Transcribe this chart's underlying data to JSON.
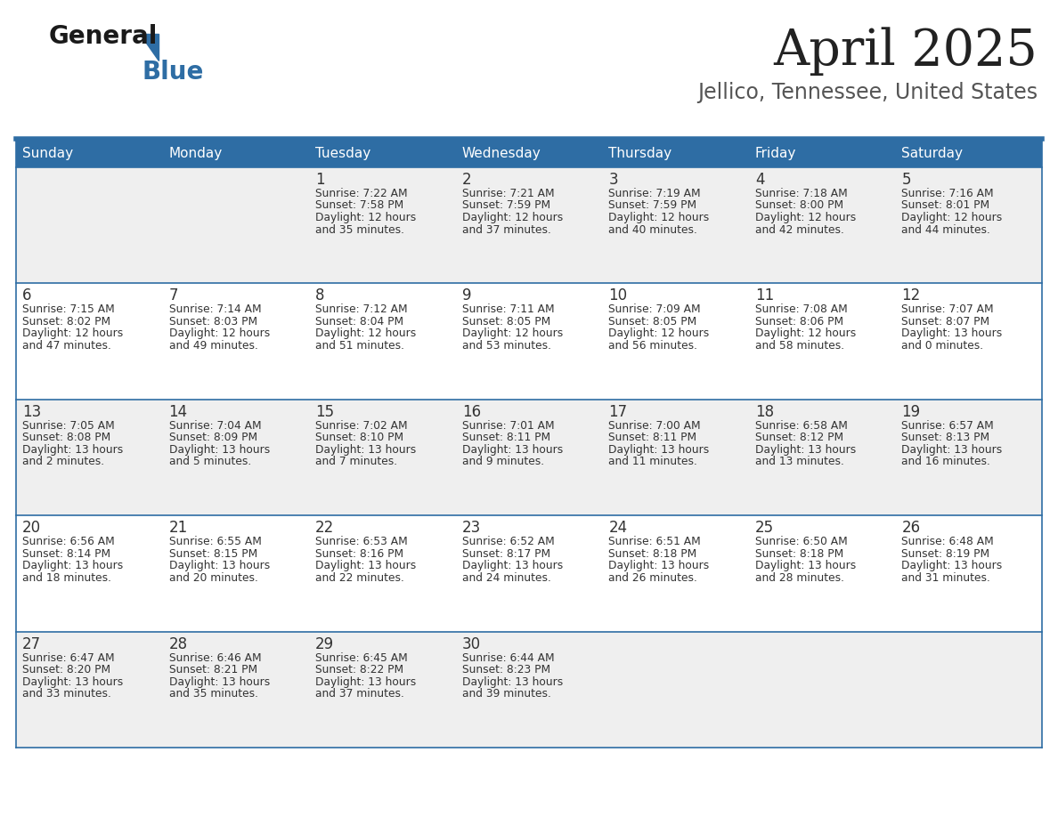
{
  "title": "April 2025",
  "subtitle": "Jellico, Tennessee, United States",
  "header_bg_color": "#2E6DA4",
  "header_text_color": "#FFFFFF",
  "cell_bg_light": "#EFEFEF",
  "cell_bg_white": "#FFFFFF",
  "border_color": "#2E6DA4",
  "day_headers": [
    "Sunday",
    "Monday",
    "Tuesday",
    "Wednesday",
    "Thursday",
    "Friday",
    "Saturday"
  ],
  "title_color": "#222222",
  "subtitle_color": "#555555",
  "day_number_color": "#333333",
  "cell_text_color": "#333333",
  "logo_general_color": "#1a1a1a",
  "logo_blue_color": "#2E6DA4",
  "logo_triangle_color": "#2E6DA4",
  "calendar": [
    [
      {
        "day": "",
        "sunrise": "",
        "sunset": "",
        "daylight": ""
      },
      {
        "day": "",
        "sunrise": "",
        "sunset": "",
        "daylight": ""
      },
      {
        "day": "1",
        "sunrise": "Sunrise: 7:22 AM",
        "sunset": "Sunset: 7:58 PM",
        "daylight": "Daylight: 12 hours\nand 35 minutes."
      },
      {
        "day": "2",
        "sunrise": "Sunrise: 7:21 AM",
        "sunset": "Sunset: 7:59 PM",
        "daylight": "Daylight: 12 hours\nand 37 minutes."
      },
      {
        "day": "3",
        "sunrise": "Sunrise: 7:19 AM",
        "sunset": "Sunset: 7:59 PM",
        "daylight": "Daylight: 12 hours\nand 40 minutes."
      },
      {
        "day": "4",
        "sunrise": "Sunrise: 7:18 AM",
        "sunset": "Sunset: 8:00 PM",
        "daylight": "Daylight: 12 hours\nand 42 minutes."
      },
      {
        "day": "5",
        "sunrise": "Sunrise: 7:16 AM",
        "sunset": "Sunset: 8:01 PM",
        "daylight": "Daylight: 12 hours\nand 44 minutes."
      }
    ],
    [
      {
        "day": "6",
        "sunrise": "Sunrise: 7:15 AM",
        "sunset": "Sunset: 8:02 PM",
        "daylight": "Daylight: 12 hours\nand 47 minutes."
      },
      {
        "day": "7",
        "sunrise": "Sunrise: 7:14 AM",
        "sunset": "Sunset: 8:03 PM",
        "daylight": "Daylight: 12 hours\nand 49 minutes."
      },
      {
        "day": "8",
        "sunrise": "Sunrise: 7:12 AM",
        "sunset": "Sunset: 8:04 PM",
        "daylight": "Daylight: 12 hours\nand 51 minutes."
      },
      {
        "day": "9",
        "sunrise": "Sunrise: 7:11 AM",
        "sunset": "Sunset: 8:05 PM",
        "daylight": "Daylight: 12 hours\nand 53 minutes."
      },
      {
        "day": "10",
        "sunrise": "Sunrise: 7:09 AM",
        "sunset": "Sunset: 8:05 PM",
        "daylight": "Daylight: 12 hours\nand 56 minutes."
      },
      {
        "day": "11",
        "sunrise": "Sunrise: 7:08 AM",
        "sunset": "Sunset: 8:06 PM",
        "daylight": "Daylight: 12 hours\nand 58 minutes."
      },
      {
        "day": "12",
        "sunrise": "Sunrise: 7:07 AM",
        "sunset": "Sunset: 8:07 PM",
        "daylight": "Daylight: 13 hours\nand 0 minutes."
      }
    ],
    [
      {
        "day": "13",
        "sunrise": "Sunrise: 7:05 AM",
        "sunset": "Sunset: 8:08 PM",
        "daylight": "Daylight: 13 hours\nand 2 minutes."
      },
      {
        "day": "14",
        "sunrise": "Sunrise: 7:04 AM",
        "sunset": "Sunset: 8:09 PM",
        "daylight": "Daylight: 13 hours\nand 5 minutes."
      },
      {
        "day": "15",
        "sunrise": "Sunrise: 7:02 AM",
        "sunset": "Sunset: 8:10 PM",
        "daylight": "Daylight: 13 hours\nand 7 minutes."
      },
      {
        "day": "16",
        "sunrise": "Sunrise: 7:01 AM",
        "sunset": "Sunset: 8:11 PM",
        "daylight": "Daylight: 13 hours\nand 9 minutes."
      },
      {
        "day": "17",
        "sunrise": "Sunrise: 7:00 AM",
        "sunset": "Sunset: 8:11 PM",
        "daylight": "Daylight: 13 hours\nand 11 minutes."
      },
      {
        "day": "18",
        "sunrise": "Sunrise: 6:58 AM",
        "sunset": "Sunset: 8:12 PM",
        "daylight": "Daylight: 13 hours\nand 13 minutes."
      },
      {
        "day": "19",
        "sunrise": "Sunrise: 6:57 AM",
        "sunset": "Sunset: 8:13 PM",
        "daylight": "Daylight: 13 hours\nand 16 minutes."
      }
    ],
    [
      {
        "day": "20",
        "sunrise": "Sunrise: 6:56 AM",
        "sunset": "Sunset: 8:14 PM",
        "daylight": "Daylight: 13 hours\nand 18 minutes."
      },
      {
        "day": "21",
        "sunrise": "Sunrise: 6:55 AM",
        "sunset": "Sunset: 8:15 PM",
        "daylight": "Daylight: 13 hours\nand 20 minutes."
      },
      {
        "day": "22",
        "sunrise": "Sunrise: 6:53 AM",
        "sunset": "Sunset: 8:16 PM",
        "daylight": "Daylight: 13 hours\nand 22 minutes."
      },
      {
        "day": "23",
        "sunrise": "Sunrise: 6:52 AM",
        "sunset": "Sunset: 8:17 PM",
        "daylight": "Daylight: 13 hours\nand 24 minutes."
      },
      {
        "day": "24",
        "sunrise": "Sunrise: 6:51 AM",
        "sunset": "Sunset: 8:18 PM",
        "daylight": "Daylight: 13 hours\nand 26 minutes."
      },
      {
        "day": "25",
        "sunrise": "Sunrise: 6:50 AM",
        "sunset": "Sunset: 8:18 PM",
        "daylight": "Daylight: 13 hours\nand 28 minutes."
      },
      {
        "day": "26",
        "sunrise": "Sunrise: 6:48 AM",
        "sunset": "Sunset: 8:19 PM",
        "daylight": "Daylight: 13 hours\nand 31 minutes."
      }
    ],
    [
      {
        "day": "27",
        "sunrise": "Sunrise: 6:47 AM",
        "sunset": "Sunset: 8:20 PM",
        "daylight": "Daylight: 13 hours\nand 33 minutes."
      },
      {
        "day": "28",
        "sunrise": "Sunrise: 6:46 AM",
        "sunset": "Sunset: 8:21 PM",
        "daylight": "Daylight: 13 hours\nand 35 minutes."
      },
      {
        "day": "29",
        "sunrise": "Sunrise: 6:45 AM",
        "sunset": "Sunset: 8:22 PM",
        "daylight": "Daylight: 13 hours\nand 37 minutes."
      },
      {
        "day": "30",
        "sunrise": "Sunrise: 6:44 AM",
        "sunset": "Sunset: 8:23 PM",
        "daylight": "Daylight: 13 hours\nand 39 minutes."
      },
      {
        "day": "",
        "sunrise": "",
        "sunset": "",
        "daylight": ""
      },
      {
        "day": "",
        "sunrise": "",
        "sunset": "",
        "daylight": ""
      },
      {
        "day": "",
        "sunrise": "",
        "sunset": "",
        "daylight": ""
      }
    ]
  ],
  "row_bg_colors": [
    "#EFEFEF",
    "#FFFFFF",
    "#EFEFEF",
    "#FFFFFF",
    "#EFEFEF"
  ]
}
